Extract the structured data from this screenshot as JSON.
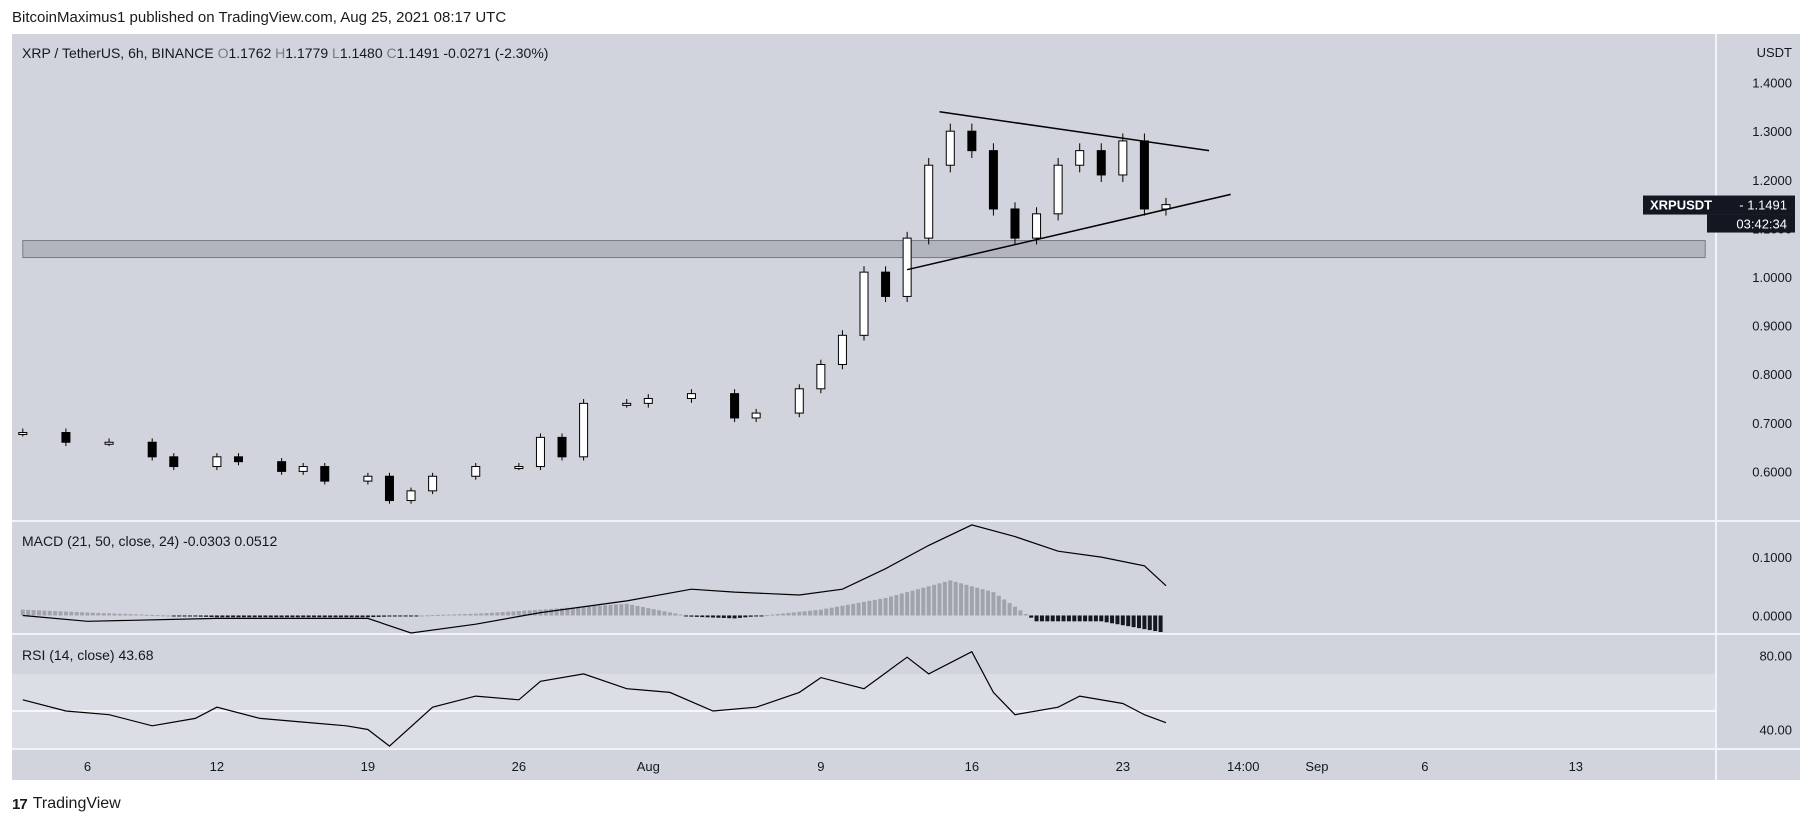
{
  "header": {
    "published": "BitcoinMaximus1 published on TradingView.com, Aug 25, 2021 08:17 UTC"
  },
  "footer": {
    "logo_mark": "17",
    "brand": "TradingView"
  },
  "colors": {
    "pane_bg": "#d1d4dc",
    "rsi_band": "#dcdee5",
    "line": "#000000",
    "support_zone": "#b2b5be",
    "price_tag_bg": "#131722",
    "pane_sep": "#f0f3fa"
  },
  "chart_data": [
    {
      "type": "candlestick",
      "legend": {
        "symbol": "XRP / TetherUS, 6h, BINANCE",
        "o_label": "O",
        "o": "1.1762",
        "h_label": "H",
        "h": "1.1779",
        "l_label": "L",
        "l": "1.1480",
        "c_label": "C",
        "c": "1.1491",
        "change": "-0.0271 (-2.30%)"
      },
      "currency": "USDT",
      "y_ticks": [
        "1.4000",
        "1.3000",
        "1.2000",
        "1.1000",
        "1.0000",
        "0.9000",
        "0.8000",
        "0.7000",
        "0.6000"
      ],
      "ylim": [
        0.5,
        1.5
      ],
      "x_ticks": [
        "6",
        "12",
        "19",
        "26",
        "Aug",
        "9",
        "16",
        "23",
        "14:00",
        "Sep",
        "6",
        "13"
      ],
      "x_tick_dates": [
        "2021-07-06",
        "2021-07-12",
        "2021-07-19",
        "2021-07-26",
        "2021-08-01",
        "2021-08-09",
        "2021-08-16",
        "2021-08-23",
        "2021-08-28 14:00",
        "2021-09-01",
        "2021-09-06",
        "2021-09-13"
      ],
      "close_series": [
        [
          "2021-07-03",
          0.68
        ],
        [
          "2021-07-05",
          0.66
        ],
        [
          "2021-07-07",
          0.66
        ],
        [
          "2021-07-09",
          0.63
        ],
        [
          "2021-07-10",
          0.61
        ],
        [
          "2021-07-12",
          0.63
        ],
        [
          "2021-07-13",
          0.62
        ],
        [
          "2021-07-15",
          0.6
        ],
        [
          "2021-07-16",
          0.61
        ],
        [
          "2021-07-17",
          0.58
        ],
        [
          "2021-07-19",
          0.59
        ],
        [
          "2021-07-20",
          0.54
        ],
        [
          "2021-07-21",
          0.56
        ],
        [
          "2021-07-22",
          0.59
        ],
        [
          "2021-07-24",
          0.61
        ],
        [
          "2021-07-26",
          0.61
        ],
        [
          "2021-07-27",
          0.67
        ],
        [
          "2021-07-28",
          0.63
        ],
        [
          "2021-07-29",
          0.74
        ],
        [
          "2021-07-31",
          0.74
        ],
        [
          "2021-08-01",
          0.75
        ],
        [
          "2021-08-03",
          0.76
        ],
        [
          "2021-08-05",
          0.71
        ],
        [
          "2021-08-06",
          0.72
        ],
        [
          "2021-08-08",
          0.77
        ],
        [
          "2021-08-09",
          0.82
        ],
        [
          "2021-08-10",
          0.88
        ],
        [
          "2021-08-11",
          1.01
        ],
        [
          "2021-08-12",
          0.96
        ],
        [
          "2021-08-13",
          1.08
        ],
        [
          "2021-08-14",
          1.23
        ],
        [
          "2021-08-15",
          1.3
        ],
        [
          "2021-08-16",
          1.26
        ],
        [
          "2021-08-17",
          1.14
        ],
        [
          "2021-08-18",
          1.08
        ],
        [
          "2021-08-19",
          1.13
        ],
        [
          "2021-08-20",
          1.23
        ],
        [
          "2021-08-21",
          1.26
        ],
        [
          "2021-08-22",
          1.21
        ],
        [
          "2021-08-23",
          1.28
        ],
        [
          "2021-08-24",
          1.14
        ],
        [
          "2021-08-25",
          1.149
        ]
      ],
      "support_zone": {
        "low": 1.04,
        "high": 1.075,
        "from": "2021-07-03",
        "to": "2021-09-19"
      },
      "triangle_upper": [
        [
          "2021-08-14 12:00",
          1.34
        ],
        [
          "2021-08-27",
          1.26
        ]
      ],
      "triangle_lower": [
        [
          "2021-08-13",
          1.015
        ],
        [
          "2021-08-28",
          1.17
        ]
      ],
      "last_price": {
        "symbol": "XRPUSDT",
        "value": "1.1491",
        "countdown": "03:42:34"
      }
    },
    {
      "type": "macd",
      "legend": {
        "title": "MACD (21, 50, close, 24)",
        "v1": "-0.0303",
        "v2": "0.0512"
      },
      "y_ticks": [
        "0.1000",
        "0.0000"
      ],
      "ylim": [
        -0.03,
        0.16
      ],
      "macd_line": [
        [
          "2021-07-03",
          0.0
        ],
        [
          "2021-07-06",
          -0.01
        ],
        [
          "2021-07-12",
          -0.005
        ],
        [
          "2021-07-19",
          -0.005
        ],
        [
          "2021-07-21",
          -0.03
        ],
        [
          "2021-07-24",
          -0.015
        ],
        [
          "2021-07-27",
          0.005
        ],
        [
          "2021-07-31",
          0.025
        ],
        [
          "2021-08-03",
          0.045
        ],
        [
          "2021-08-05",
          0.04
        ],
        [
          "2021-08-08",
          0.035
        ],
        [
          "2021-08-10",
          0.045
        ],
        [
          "2021-08-12",
          0.08
        ],
        [
          "2021-08-14",
          0.12
        ],
        [
          "2021-08-16",
          0.155
        ],
        [
          "2021-08-18",
          0.135
        ],
        [
          "2021-08-20",
          0.11
        ],
        [
          "2021-08-22",
          0.1
        ],
        [
          "2021-08-24",
          0.085
        ],
        [
          "2021-08-25",
          0.051
        ]
      ],
      "histogram": [
        [
          "2021-07-03",
          0.01
        ],
        [
          "2021-07-06",
          0.005
        ],
        [
          "2021-07-12",
          -0.003
        ],
        [
          "2021-07-19",
          -0.003
        ],
        [
          "2021-07-24",
          0.003
        ],
        [
          "2021-07-27",
          0.01
        ],
        [
          "2021-07-31",
          0.02
        ],
        [
          "2021-08-03",
          -0.002
        ],
        [
          "2021-08-05",
          -0.005
        ],
        [
          "2021-08-09",
          0.01
        ],
        [
          "2021-08-12",
          0.03
        ],
        [
          "2021-08-15",
          0.06
        ],
        [
          "2021-08-17",
          0.04
        ],
        [
          "2021-08-19",
          -0.01
        ],
        [
          "2021-08-22",
          -0.01
        ],
        [
          "2021-08-25",
          -0.03
        ]
      ]
    },
    {
      "type": "rsi",
      "legend": {
        "title": "RSI (14, close)",
        "value": "43.68"
      },
      "y_ticks": [
        "80.00",
        "40.00"
      ],
      "ylim": [
        30,
        91
      ],
      "band": [
        30,
        70
      ],
      "midline": 50,
      "rsi_line": [
        [
          "2021-07-03",
          56
        ],
        [
          "2021-07-05",
          50
        ],
        [
          "2021-07-07",
          48
        ],
        [
          "2021-07-09",
          42
        ],
        [
          "2021-07-11",
          46
        ],
        [
          "2021-07-12",
          52
        ],
        [
          "2021-07-14",
          46
        ],
        [
          "2021-07-16",
          44
        ],
        [
          "2021-07-18",
          42
        ],
        [
          "2021-07-19",
          40
        ],
        [
          "2021-07-20",
          31
        ],
        [
          "2021-07-22",
          52
        ],
        [
          "2021-07-24",
          58
        ],
        [
          "2021-07-26",
          56
        ],
        [
          "2021-07-27",
          66
        ],
        [
          "2021-07-29",
          70
        ],
        [
          "2021-07-31",
          62
        ],
        [
          "2021-08-02",
          60
        ],
        [
          "2021-08-04",
          50
        ],
        [
          "2021-08-06",
          52
        ],
        [
          "2021-08-08",
          60
        ],
        [
          "2021-08-09",
          68
        ],
        [
          "2021-08-11",
          62
        ],
        [
          "2021-08-13",
          79
        ],
        [
          "2021-08-14",
          70
        ],
        [
          "2021-08-16",
          82
        ],
        [
          "2021-08-17",
          60
        ],
        [
          "2021-08-18",
          48
        ],
        [
          "2021-08-20",
          52
        ],
        [
          "2021-08-21",
          58
        ],
        [
          "2021-08-23",
          54
        ],
        [
          "2021-08-24",
          48
        ],
        [
          "2021-08-25",
          43.68
        ]
      ]
    }
  ]
}
